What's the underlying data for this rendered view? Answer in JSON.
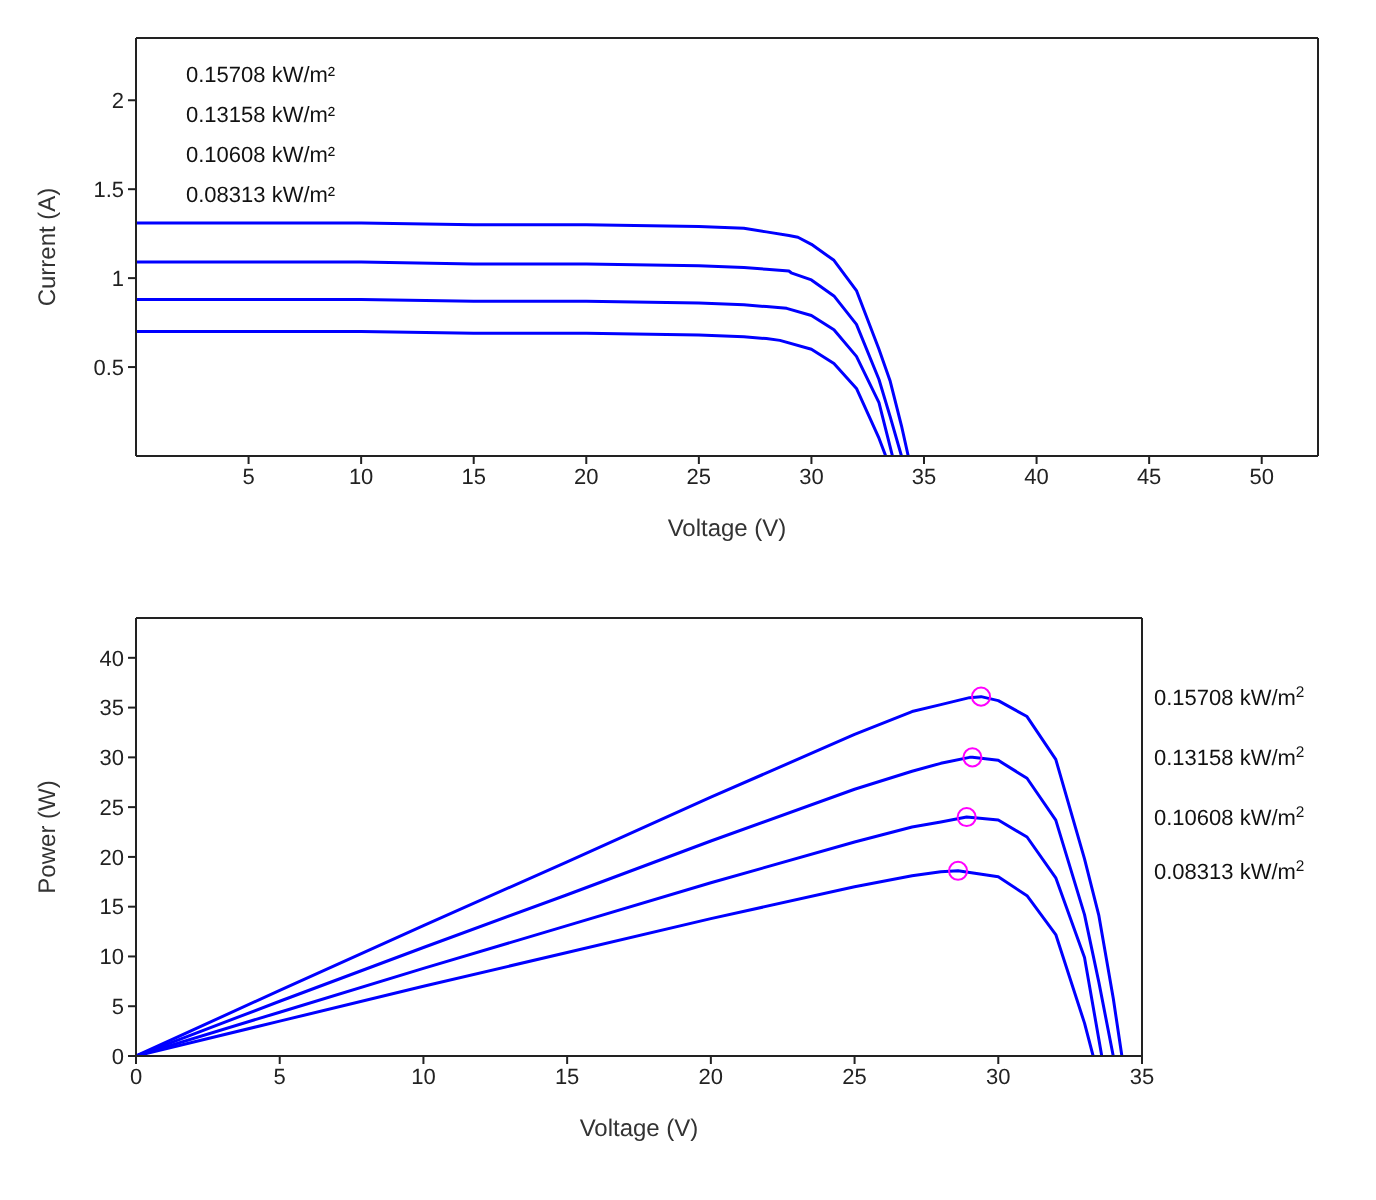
{
  "chart_data": [
    {
      "type": "line",
      "xlabel": "Voltage (V)",
      "ylabel": "Current (A)",
      "xlim": [
        0,
        52.5
      ],
      "xticks": [
        5,
        10,
        15,
        20,
        25,
        30,
        35,
        40,
        45,
        50
      ],
      "ylim": [
        0,
        2.35
      ],
      "yticks": [
        0.5,
        1,
        1.5,
        2
      ],
      "annotations": [
        "0.15708 kW/m²",
        "0.13158 kW/m²",
        "0.10608 kW/m²",
        "0.08313 kW/m²"
      ],
      "marker": "none",
      "series": [
        {
          "color": "#0000ff",
          "x": [
            0,
            5,
            10,
            15,
            20,
            25,
            27,
            28,
            29,
            29.4,
            30,
            31,
            32,
            33,
            33.5,
            34,
            34.3
          ],
          "values": [
            1.31,
            1.31,
            1.31,
            1.3,
            1.3,
            1.29,
            1.28,
            1.26,
            1.24,
            1.23,
            1.19,
            1.1,
            0.93,
            0.6,
            0.42,
            0.17,
            0
          ]
        },
        {
          "color": "#0000ff",
          "x": [
            0,
            5,
            10,
            15,
            20,
            25,
            27,
            28,
            29,
            29.1,
            30,
            31,
            32,
            33,
            33.5,
            34
          ],
          "values": [
            1.09,
            1.09,
            1.09,
            1.08,
            1.08,
            1.07,
            1.06,
            1.05,
            1.04,
            1.03,
            0.99,
            0.9,
            0.74,
            0.43,
            0.22,
            0
          ]
        },
        {
          "color": "#0000ff",
          "x": [
            0,
            5,
            10,
            15,
            20,
            25,
            27,
            28,
            28.9,
            30,
            31,
            32,
            33,
            33.6
          ],
          "values": [
            0.88,
            0.88,
            0.88,
            0.87,
            0.87,
            0.86,
            0.85,
            0.84,
            0.83,
            0.79,
            0.71,
            0.56,
            0.3,
            0
          ]
        },
        {
          "color": "#0000ff",
          "x": [
            0,
            5,
            10,
            15,
            20,
            25,
            27,
            28,
            28.6,
            30,
            31,
            32,
            33,
            33.3
          ],
          "values": [
            0.7,
            0.7,
            0.7,
            0.69,
            0.69,
            0.68,
            0.67,
            0.66,
            0.65,
            0.6,
            0.52,
            0.38,
            0.1,
            0
          ]
        }
      ]
    },
    {
      "type": "line",
      "xlabel": "Voltage (V)",
      "ylabel": "Power (W)",
      "xlim": [
        0,
        35
      ],
      "xticks": [
        0,
        5,
        10,
        15,
        20,
        25,
        30,
        35
      ],
      "ylim": [
        0,
        44
      ],
      "yticks": [
        0,
        5,
        10,
        15,
        20,
        25,
        30,
        35,
        40
      ],
      "marker": "none",
      "series": [
        {
          "name": "0.15708 kW/m$^{2}$",
          "color": "#0000ff",
          "x": [
            0,
            5,
            10,
            15,
            20,
            25,
            27,
            28,
            29,
            29.4,
            30,
            31,
            32,
            33,
            33.5,
            34,
            34.3
          ],
          "values": [
            0,
            6.6,
            13.1,
            19.5,
            26,
            32.3,
            34.6,
            35.3,
            36,
            36.1,
            35.7,
            34.1,
            29.8,
            19.8,
            14.1,
            5.8,
            0
          ]
        },
        {
          "name": "0.13158 kW/m$^{2}$",
          "color": "#0000ff",
          "x": [
            0,
            5,
            10,
            15,
            20,
            25,
            27,
            28,
            29,
            29.1,
            30,
            31,
            32,
            33,
            33.5,
            34
          ],
          "values": [
            0,
            5.5,
            10.9,
            16.2,
            21.6,
            26.8,
            28.6,
            29.4,
            30,
            30,
            29.7,
            27.9,
            23.7,
            14.2,
            7.4,
            0
          ]
        },
        {
          "name": "0.10608 kW/m$^{2}$",
          "color": "#0000ff",
          "x": [
            0,
            5,
            10,
            15,
            20,
            25,
            27,
            28,
            28.9,
            30,
            31,
            32,
            33,
            33.6
          ],
          "values": [
            0,
            4.4,
            8.8,
            13.1,
            17.4,
            21.5,
            23,
            23.5,
            24,
            23.7,
            22,
            17.9,
            9.9,
            0
          ]
        },
        {
          "name": "0.08313 kW/m$^{2}$",
          "color": "#0000ff",
          "x": [
            0,
            5,
            10,
            15,
            20,
            25,
            27,
            28,
            28.6,
            30,
            31,
            32,
            33,
            33.3
          ],
          "values": [
            0,
            3.5,
            7,
            10.4,
            13.8,
            17,
            18.1,
            18.5,
            18.6,
            18,
            16.1,
            12.2,
            3.3,
            0
          ]
        },
        {
          "type": "scatter",
          "color": "#ff00ff",
          "marker": "circle",
          "x": [
            29.4,
            29.1,
            28.9,
            28.6
          ],
          "values": [
            36.1,
            30,
            24,
            18.6
          ]
        }
      ]
    }
  ]
}
